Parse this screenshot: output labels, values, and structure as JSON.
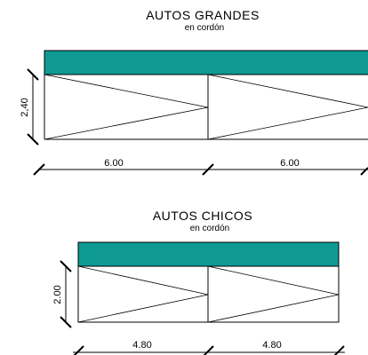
{
  "colors": {
    "band": "#0e9a93",
    "line": "#000000",
    "background": "#ffffff"
  },
  "sections": [
    {
      "title": "AUTOS GRANDES",
      "subtitle": "en cordón",
      "width_label": "6.00",
      "width_label_2": "6.00",
      "depth_label": "2,40"
    },
    {
      "title": "AUTOS CHICOS",
      "subtitle": "en cordón",
      "width_label": "4.80",
      "width_label_2": "4.80",
      "depth_label": "2.00"
    }
  ]
}
